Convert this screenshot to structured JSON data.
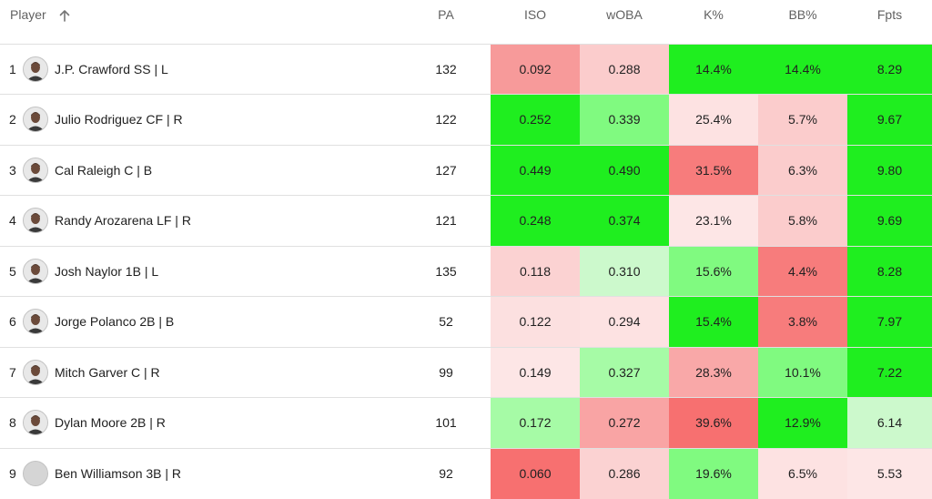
{
  "headers": [
    "Player",
    "PA",
    "ISO",
    "wOBA",
    "K%",
    "BB%",
    "Fpts"
  ],
  "sort_icon": "arrow-up-icon",
  "rows": [
    {
      "rank": "1",
      "player": "J.P. Crawford SS | L",
      "avatar": "player-photo",
      "pa": "132",
      "cells": [
        {
          "v": "0.092",
          "bg": "#f79a9a"
        },
        {
          "v": "0.288",
          "bg": "#fbcccc"
        },
        {
          "v": "14.4%",
          "bg": "#1fee1f"
        },
        {
          "v": "14.4%",
          "bg": "#1fee1f"
        },
        {
          "v": "8.29",
          "bg": "#1fee1f"
        }
      ]
    },
    {
      "rank": "2",
      "player": "Julio Rodriguez CF | R",
      "avatar": "player-photo",
      "pa": "122",
      "cells": [
        {
          "v": "0.252",
          "bg": "#1fee1f"
        },
        {
          "v": "0.339",
          "bg": "#80fa80"
        },
        {
          "v": "25.4%",
          "bg": "#fde2e2"
        },
        {
          "v": "5.7%",
          "bg": "#fbcccc"
        },
        {
          "v": "9.67",
          "bg": "#1fee1f"
        }
      ]
    },
    {
      "rank": "3",
      "player": "Cal Raleigh C | B",
      "avatar": "player-photo",
      "pa": "127",
      "cells": [
        {
          "v": "0.449",
          "bg": "#1fee1f"
        },
        {
          "v": "0.490",
          "bg": "#1fee1f"
        },
        {
          "v": "31.5%",
          "bg": "#f77c7c"
        },
        {
          "v": "6.3%",
          "bg": "#fbcccc"
        },
        {
          "v": "9.80",
          "bg": "#1fee1f"
        }
      ]
    },
    {
      "rank": "4",
      "player": "Randy Arozarena LF | R",
      "avatar": "player-photo",
      "pa": "121",
      "cells": [
        {
          "v": "0.248",
          "bg": "#1fee1f"
        },
        {
          "v": "0.374",
          "bg": "#1fee1f"
        },
        {
          "v": "23.1%",
          "bg": "#fde6e6"
        },
        {
          "v": "5.8%",
          "bg": "#fbcccc"
        },
        {
          "v": "9.69",
          "bg": "#1fee1f"
        }
      ]
    },
    {
      "rank": "5",
      "player": "Josh Naylor 1B | L",
      "avatar": "player-photo",
      "pa": "135",
      "cells": [
        {
          "v": "0.118",
          "bg": "#fbd2d2"
        },
        {
          "v": "0.310",
          "bg": "#ccf9cc"
        },
        {
          "v": "15.6%",
          "bg": "#80fa80"
        },
        {
          "v": "4.4%",
          "bg": "#f77c7c"
        },
        {
          "v": "8.28",
          "bg": "#1fee1f"
        }
      ]
    },
    {
      "rank": "6",
      "player": "Jorge Polanco 2B | B",
      "avatar": "player-photo",
      "pa": "52",
      "cells": [
        {
          "v": "0.122",
          "bg": "#fce0e0"
        },
        {
          "v": "0.294",
          "bg": "#fde2e2"
        },
        {
          "v": "15.4%",
          "bg": "#1fee1f"
        },
        {
          "v": "3.8%",
          "bg": "#f77c7c"
        },
        {
          "v": "7.97",
          "bg": "#1fee1f"
        }
      ]
    },
    {
      "rank": "7",
      "player": "Mitch Garver C | R",
      "avatar": "player-photo",
      "pa": "99",
      "cells": [
        {
          "v": "0.149",
          "bg": "#fde6e6"
        },
        {
          "v": "0.327",
          "bg": "#a6fba6"
        },
        {
          "v": "28.3%",
          "bg": "#f9a8a8"
        },
        {
          "v": "10.1%",
          "bg": "#80fa80"
        },
        {
          "v": "7.22",
          "bg": "#1fee1f"
        }
      ]
    },
    {
      "rank": "8",
      "player": "Dylan Moore 2B | R",
      "avatar": "player-photo",
      "pa": "101",
      "cells": [
        {
          "v": "0.172",
          "bg": "#a6fba6"
        },
        {
          "v": "0.272",
          "bg": "#f9a4a4"
        },
        {
          "v": "39.6%",
          "bg": "#f77070"
        },
        {
          "v": "12.9%",
          "bg": "#1fee1f"
        },
        {
          "v": "6.14",
          "bg": "#ccf9cc"
        }
      ]
    },
    {
      "rank": "9",
      "player": "Ben Williamson 3B | R",
      "avatar": "placeholder-avatar",
      "pa": "92",
      "cells": [
        {
          "v": "0.060",
          "bg": "#f77070"
        },
        {
          "v": "0.286",
          "bg": "#fbd2d2"
        },
        {
          "v": "19.6%",
          "bg": "#80fa80"
        },
        {
          "v": "6.5%",
          "bg": "#fde2e2"
        },
        {
          "v": "5.53",
          "bg": "#fde6e6"
        }
      ]
    }
  ]
}
